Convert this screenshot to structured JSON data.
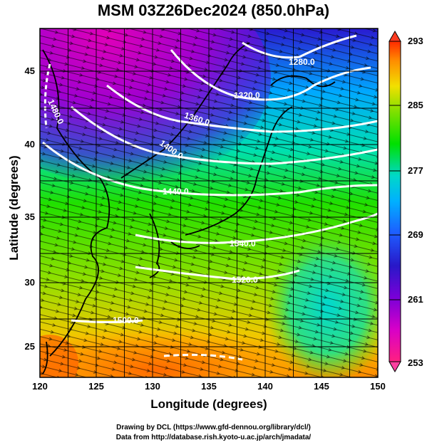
{
  "title": "MSM 03Z26Dec2024 (850.0hPa)",
  "x_axis": {
    "label": "Longitude (degrees)",
    "ticks": [
      "120",
      "125",
      "130",
      "135",
      "140",
      "145",
      "150"
    ]
  },
  "y_axis": {
    "label": "Latitude  (degrees)",
    "ticks": [
      "25",
      "30",
      "35",
      "40",
      "45"
    ]
  },
  "colorbar": {
    "ticks": [
      "293",
      "285",
      "277",
      "269",
      "261",
      "253"
    ],
    "colors": [
      "#ff2a00",
      "#ff8c00",
      "#f2e000",
      "#7fe000",
      "#00e000",
      "#00d8c8",
      "#00b0ff",
      "#1e5cff",
      "#2818c8",
      "#7a00d8",
      "#d800c8",
      "#ff2080"
    ]
  },
  "contour_labels": [
    "1280.0",
    "1320.0",
    "1360.0",
    "1400.0",
    "1440.0",
    "1480.0",
    "1540.0",
    "1520.0",
    "1500.0"
  ],
  "credits": {
    "line1": "Drawing by DCL (https://www.gfd-dennou.org/library/dcl/)",
    "line2": "Data from http://database.rish.kyoto-u.ac.jp/arch/jmadata/"
  },
  "map_data": {
    "extent": {
      "lon": [
        120,
        150
      ],
      "lat": [
        22.4,
        47.6
      ]
    },
    "field": "temperature (K) with geopotential height contours and wind streamlines",
    "temperature_range": [
      253,
      293
    ],
    "cold_core_region": "northwest (Manchuria / Sea of Japan)",
    "warm_region": "south (subtropical Pacific)"
  }
}
